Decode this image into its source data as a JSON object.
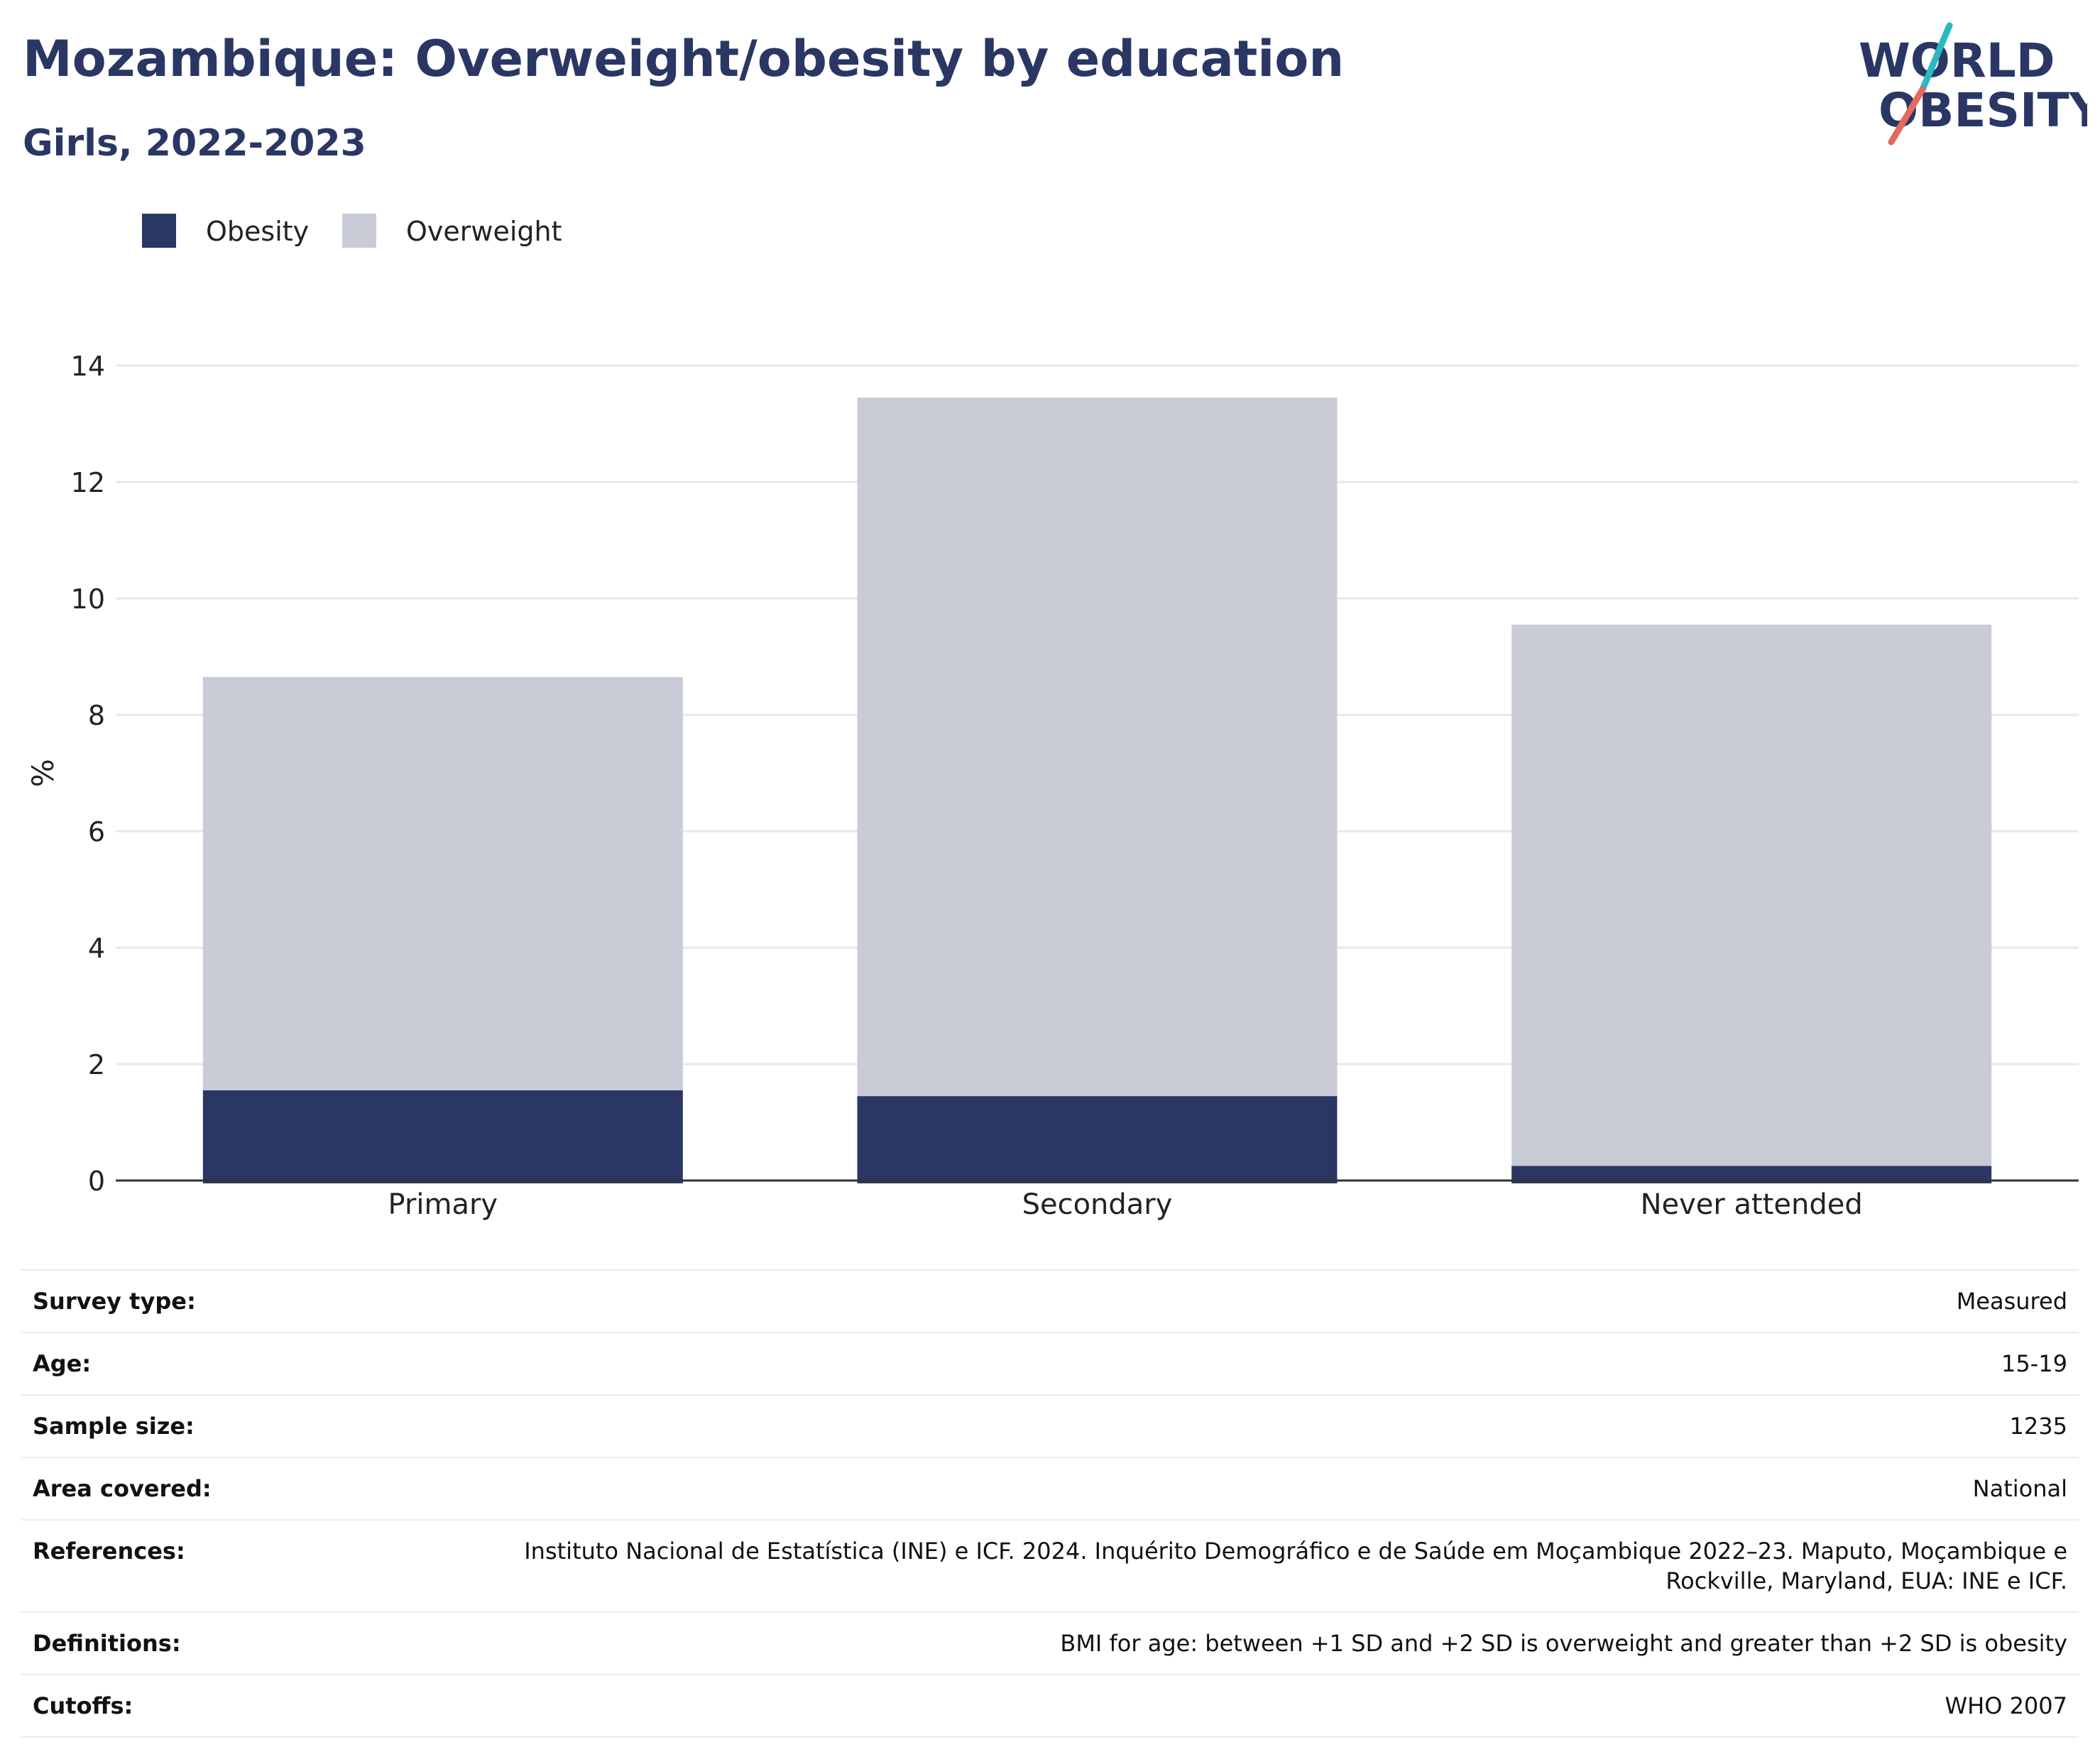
{
  "header": {
    "title": "Mozambique: Overweight/obesity by education",
    "subtitle": "Girls, 2022-2023"
  },
  "logo": {
    "line1": "WORLD",
    "line2": "OBESITY"
  },
  "colors": {
    "obesity": "#2a3765",
    "overweight": "#c9cbd6",
    "text": "#2a3765",
    "grid": "#e8e8ea",
    "axis": "#333333",
    "logo_slash_top": "#2bb8c0",
    "logo_slash_bottom": "#e46a5a"
  },
  "chart_data": {
    "type": "bar",
    "stacked": true,
    "categories": [
      "Primary",
      "Secondary",
      "Never attended"
    ],
    "series": [
      {
        "name": "Obesity",
        "values": [
          1.55,
          1.45,
          0.25
        ]
      },
      {
        "name": "Overweight",
        "values": [
          7.1,
          12.0,
          9.3
        ]
      }
    ],
    "ylabel": "%",
    "ylim": [
      0,
      14
    ],
    "yticks": [
      0,
      2,
      4,
      6,
      8,
      10,
      12,
      14
    ],
    "grid": true,
    "legend_position": "top-left"
  },
  "details": [
    {
      "label": "Survey type:",
      "value": "Measured"
    },
    {
      "label": "Age:",
      "value": "15-19"
    },
    {
      "label": "Sample size:",
      "value": "1235"
    },
    {
      "label": "Area covered:",
      "value": "National"
    },
    {
      "label": "References:",
      "value": "Instituto Nacional de Estatística (INE) e ICF. 2024. Inquérito Demográfico e de Saúde em Moçambique 2022–23. Maputo, Moçambique e Rockville, Maryland, EUA: INE e ICF."
    },
    {
      "label": "Definitions:",
      "value": "BMI for age: between +1 SD and +2 SD is overweight and greater than +2 SD is obesity"
    },
    {
      "label": "Cutoffs:",
      "value": "WHO 2007"
    }
  ]
}
